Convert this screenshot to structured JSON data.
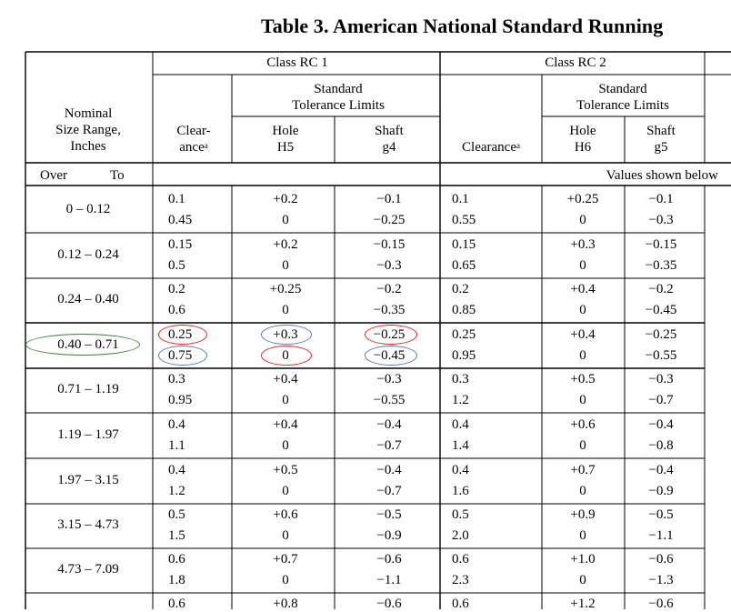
{
  "title": "Table 3.  American National Standard Running",
  "header": {
    "class_rc1": "Class RC 1",
    "class_rc2": "Class RC 2",
    "std_tol": "Standard",
    "tol_limits": "Tolerance Limits",
    "nominal_1": "Nominal",
    "nominal_2": "Size Range,",
    "nominal_3": "Inches",
    "clear_1": "Clear-",
    "clear_2": "ance",
    "clearance": "Clearance",
    "sup_a": "a",
    "hole": "Hole",
    "shaft": "Shaft",
    "h5": "H5",
    "g4": "g4",
    "h6": "H6",
    "g5": "g5",
    "over": "Over",
    "to": "To",
    "values_note": "Values shown below"
  },
  "rows": [
    {
      "range": "0 –  0.12",
      "c1": [
        "0.1",
        "0.45"
      ],
      "h1": [
        "+0.2",
        "0"
      ],
      "s1": [
        "−0.1",
        "−0.25"
      ],
      "c2": [
        "0.1",
        "0.55"
      ],
      "h2": [
        "+0.25",
        "0"
      ],
      "s2": [
        "−0.1",
        "−0.3"
      ]
    },
    {
      "range": "0.12 –  0.24",
      "c1": [
        "0.15",
        "0.5"
      ],
      "h1": [
        "+0.2",
        "0"
      ],
      "s1": [
        "−0.15",
        "−0.3"
      ],
      "c2": [
        "0.15",
        "0.65"
      ],
      "h2": [
        "+0.3",
        "0"
      ],
      "s2": [
        "−0.15",
        "−0.35"
      ]
    },
    {
      "range": "0.24 –  0.40",
      "c1": [
        "0.2",
        "0.6"
      ],
      "h1": [
        "+0.25",
        "0"
      ],
      "s1": [
        "−0.2",
        "−0.35"
      ],
      "c2": [
        "0.2",
        "0.85"
      ],
      "h2": [
        "+0.4",
        "0"
      ],
      "s2": [
        "−0.2",
        "−0.45"
      ]
    },
    {
      "range": "0.40 –  0.71",
      "c1": [
        "0.25",
        "0.75"
      ],
      "h1": [
        "+0.3",
        "0"
      ],
      "s1": [
        "−0.25",
        "−0.45"
      ],
      "c2": [
        "0.25",
        "0.95"
      ],
      "h2": [
        "+0.4",
        "0"
      ],
      "s2": [
        "−0.25",
        "−0.55"
      ]
    },
    {
      "range": "0.71 –  1.19",
      "c1": [
        "0.3",
        "0.95"
      ],
      "h1": [
        "+0.4",
        "0"
      ],
      "s1": [
        "−0.3",
        "−0.55"
      ],
      "c2": [
        "0.3",
        "1.2"
      ],
      "h2": [
        "+0.5",
        "0"
      ],
      "s2": [
        "−0.3",
        "−0.7"
      ]
    },
    {
      "range": "1.19 –  1.97",
      "c1": [
        "0.4",
        "1.1"
      ],
      "h1": [
        "+0.4",
        "0"
      ],
      "s1": [
        "−0.4",
        "−0.7"
      ],
      "c2": [
        "0.4",
        "1.4"
      ],
      "h2": [
        "+0.6",
        "0"
      ],
      "s2": [
        "−0.4",
        "−0.8"
      ]
    },
    {
      "range": "1.97 –  3.15",
      "c1": [
        "0.4",
        "1.2"
      ],
      "h1": [
        "+0.5",
        "0"
      ],
      "s1": [
        "−0.4",
        "−0.7"
      ],
      "c2": [
        "0.4",
        "1.6"
      ],
      "h2": [
        "+0.7",
        "0"
      ],
      "s2": [
        "−0.4",
        "−0.9"
      ]
    },
    {
      "range": "3.15 –  4.73",
      "c1": [
        "0.5",
        "1.5"
      ],
      "h1": [
        "+0.6",
        "0"
      ],
      "s1": [
        "−0.5",
        "−0.9"
      ],
      "c2": [
        "0.5",
        "2.0"
      ],
      "h2": [
        "+0.9",
        "0"
      ],
      "s2": [
        "−0.5",
        "−1.1"
      ]
    },
    {
      "range": "4.73 –  7.09",
      "c1": [
        "0.6",
        "1.8"
      ],
      "h1": [
        "+0.7",
        "0"
      ],
      "s1": [
        "−0.6",
        "−1.1"
      ],
      "c2": [
        "0.6",
        "2.3"
      ],
      "h2": [
        "+1.0",
        "0"
      ],
      "s2": [
        "−0.6",
        "−1.3"
      ]
    },
    {
      "range": "",
      "c1": [
        "0.6",
        ""
      ],
      "h1": [
        "+0.8",
        ""
      ],
      "s1": [
        "−0.6",
        ""
      ],
      "c2": [
        "0.6",
        ""
      ],
      "h2": [
        "+1.2",
        ""
      ],
      "s2": [
        "−0.6",
        ""
      ]
    }
  ],
  "annotation_colors": {
    "green": "#3a7d3a",
    "red": "#e02020",
    "blue": "#5a78b4"
  }
}
